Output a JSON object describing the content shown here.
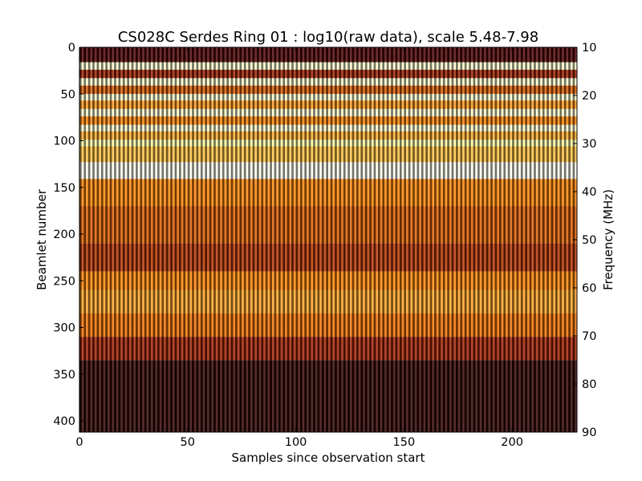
{
  "chart_data": {
    "type": "heatmap",
    "title": "CS028C Serdes Ring 01 : log10(raw data), scale 5.48-7.98",
    "xlabel": "Samples since observation start",
    "ylabel": "Beamlet number",
    "y2label": "Frequency (MHz)",
    "xlim": [
      0,
      230
    ],
    "ylim": [
      412,
      0
    ],
    "y2lim": [
      90,
      10
    ],
    "xticks": [
      0,
      50,
      100,
      150,
      200
    ],
    "yticks": [
      0,
      50,
      100,
      150,
      200,
      250,
      300,
      350,
      400
    ],
    "y2ticks": [
      10,
      20,
      30,
      40,
      50,
      60,
      70,
      80,
      90
    ],
    "color_scale": [
      5.48,
      7.98
    ],
    "colormap": "afmhot_r",
    "grid": false,
    "column_pattern": "alternating dark/light vertical stripes across samples",
    "bands": [
      {
        "start": 0,
        "end": 16,
        "value": 7.6
      },
      {
        "start": 16,
        "end": 24,
        "value": 5.7
      },
      {
        "start": 24,
        "end": 33,
        "value": 7.2
      },
      {
        "start": 33,
        "end": 41,
        "value": 5.7
      },
      {
        "start": 41,
        "end": 50,
        "value": 6.9
      },
      {
        "start": 50,
        "end": 57,
        "value": 5.7
      },
      {
        "start": 57,
        "end": 66,
        "value": 6.6
      },
      {
        "start": 66,
        "end": 74,
        "value": 5.7
      },
      {
        "start": 74,
        "end": 83,
        "value": 6.7
      },
      {
        "start": 83,
        "end": 90,
        "value": 5.7
      },
      {
        "start": 90,
        "end": 99,
        "value": 6.5
      },
      {
        "start": 99,
        "end": 106,
        "value": 5.9
      },
      {
        "start": 106,
        "end": 123,
        "value": 6.4
      },
      {
        "start": 123,
        "end": 141,
        "value": 5.55
      },
      {
        "start": 141,
        "end": 170,
        "value": 6.7
      },
      {
        "start": 170,
        "end": 210,
        "value": 6.9
      },
      {
        "start": 210,
        "end": 240,
        "value": 7.1
      },
      {
        "start": 240,
        "end": 260,
        "value": 6.7
      },
      {
        "start": 260,
        "end": 285,
        "value": 6.55
      },
      {
        "start": 285,
        "end": 310,
        "value": 6.8
      },
      {
        "start": 310,
        "end": 335,
        "value": 7.2
      },
      {
        "start": 335,
        "end": 412,
        "value": 7.75
      }
    ]
  }
}
